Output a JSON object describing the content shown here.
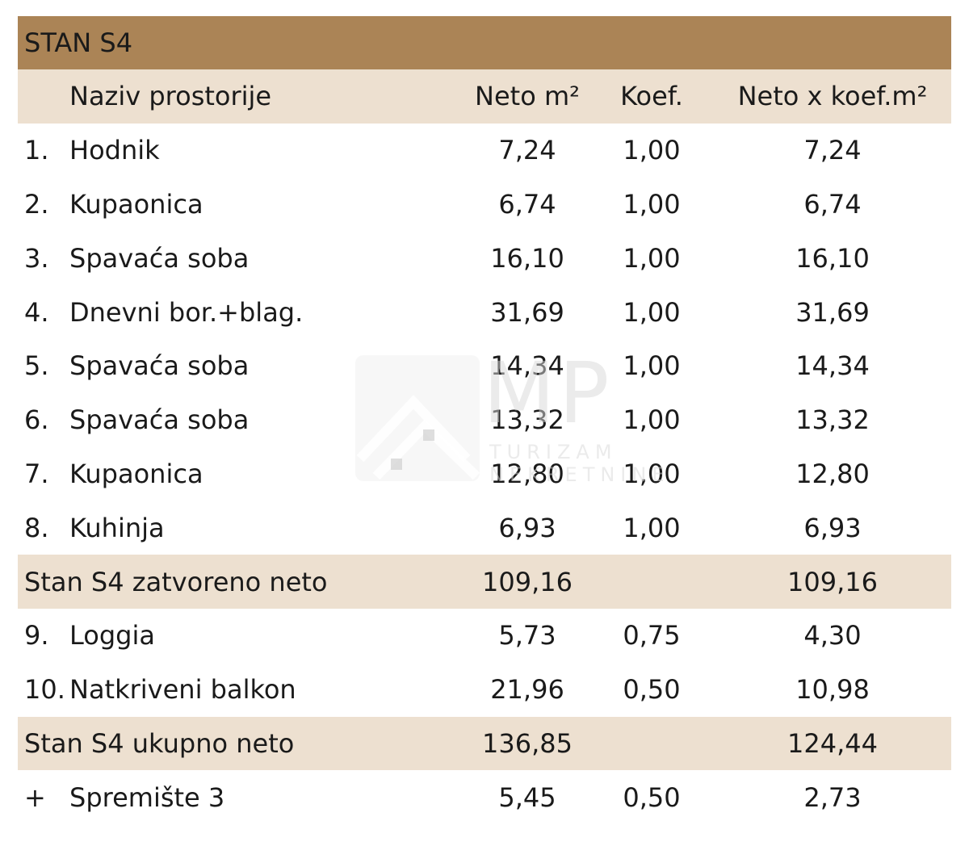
{
  "title": "STAN S4",
  "header": {
    "name": "Naziv prostorije",
    "neto": "Neto m²",
    "koef": "Koef.",
    "neto_koef": "Neto x koef.m²"
  },
  "rooms": [
    {
      "num": "1.",
      "name": "Hodnik",
      "neto": "7,24",
      "koef": "1,00",
      "neto_koef": "7,24"
    },
    {
      "num": "2.",
      "name": "Kupaonica",
      "neto": "6,74",
      "koef": "1,00",
      "neto_koef": "6,74"
    },
    {
      "num": "3.",
      "name": "Spavaća soba",
      "neto": "16,10",
      "koef": "1,00",
      "neto_koef": "16,10"
    },
    {
      "num": "4.",
      "name": "Dnevni bor.+blag.",
      "neto": "31,69",
      "koef": "1,00",
      "neto_koef": "31,69"
    },
    {
      "num": "5.",
      "name": "Spavaća soba",
      "neto": "14,34",
      "koef": "1,00",
      "neto_koef": "14,34"
    },
    {
      "num": "6.",
      "name": "Spavaća soba",
      "neto": "13,32",
      "koef": "1,00",
      "neto_koef": "13,32"
    },
    {
      "num": "7.",
      "name": "Kupaonica",
      "neto": "12,80",
      "koef": "1,00",
      "neto_koef": "12,80"
    },
    {
      "num": "8.",
      "name": "Kuhinja",
      "neto": "6,93",
      "koef": "1,00",
      "neto_koef": "6,93"
    }
  ],
  "subtotal_closed": {
    "label": "Stan S4 zatvoreno neto",
    "neto": "109,16",
    "koef": "",
    "neto_koef": "109,16"
  },
  "outdoor": [
    {
      "num": "9.",
      "name": "Loggia",
      "neto": "5,73",
      "koef": "0,75",
      "neto_koef": "4,30"
    },
    {
      "num": "10.",
      "name": "Natkriveni balkon",
      "neto": "21,96",
      "koef": "0,50",
      "neto_koef": "10,98"
    }
  ],
  "subtotal_total": {
    "label": "Stan S4 ukupno neto",
    "neto": "136,85",
    "koef": "",
    "neto_koef": "124,44"
  },
  "storage": {
    "num": "+",
    "name": "Spremište 3",
    "neto": "5,45",
    "koef": "0,50",
    "neto_koef": "2,73"
  },
  "watermark": {
    "letters": "MP",
    "line1": "TURIZAM",
    "line2": "NEKRETNINE"
  },
  "colors": {
    "title_bar": "#ab8456",
    "band": "#ede0d0"
  }
}
